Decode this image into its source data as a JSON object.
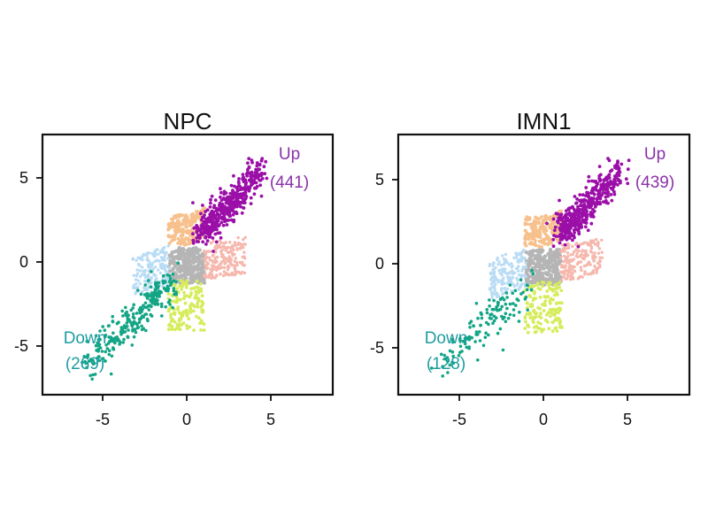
{
  "chart_data": [
    {
      "type": "scatter",
      "title": "NPC",
      "xlabel": "",
      "ylabel": "",
      "xlim": [
        -8.5,
        8.5
      ],
      "ylim": [
        -8.5,
        8.5
      ],
      "x_ticks": [
        "-5",
        "0",
        "5"
      ],
      "y_ticks": [
        "5",
        "0",
        "-5"
      ],
      "x_tick_values": [
        -5,
        0,
        5
      ],
      "y_tick_values": [
        5,
        0,
        -5
      ],
      "groups": {
        "up": {
          "label": "Up",
          "count": "(441)",
          "color": "#9b0fa8"
        },
        "down": {
          "label": "Down",
          "count": "(269)",
          "color": "#13a585"
        },
        "up_x": {
          "color": "#f7c08c"
        },
        "up_y": {
          "color": "#f6b7ad"
        },
        "down_x": {
          "color": "#b9dcf5"
        },
        "down_y": {
          "color": "#d6ec5c"
        },
        "center": {
          "color": "#b5b5b5"
        }
      },
      "point_counts": {
        "up": 441,
        "down": 269
      },
      "annotation_colors": {
        "up": "#8a32a8",
        "down": "#1f9da0"
      }
    },
    {
      "type": "scatter",
      "title": "IMN1",
      "xlabel": "",
      "ylabel": "",
      "xlim": [
        -8.5,
        8.5
      ],
      "ylim": [
        -8.5,
        8.5
      ],
      "x_ticks": [
        "-5",
        "0",
        "5"
      ],
      "y_ticks": [
        "5",
        "0",
        "-5"
      ],
      "x_tick_values": [
        -5,
        0,
        5
      ],
      "y_tick_values": [
        5,
        0,
        -5
      ],
      "groups": {
        "up": {
          "label": "Up",
          "count": "(439)",
          "color": "#9b0fa8"
        },
        "down": {
          "label": "Down",
          "count": "(128)",
          "color": "#13a585"
        },
        "up_x": {
          "color": "#f7c08c"
        },
        "up_y": {
          "color": "#f6b7ad"
        },
        "down_x": {
          "color": "#b9dcf5"
        },
        "down_y": {
          "color": "#d6ec5c"
        },
        "center": {
          "color": "#b5b5b5"
        }
      },
      "point_counts": {
        "up": 439,
        "down": 128
      },
      "annotation_colors": {
        "up": "#8a32a8",
        "down": "#1f9da0"
      }
    }
  ]
}
